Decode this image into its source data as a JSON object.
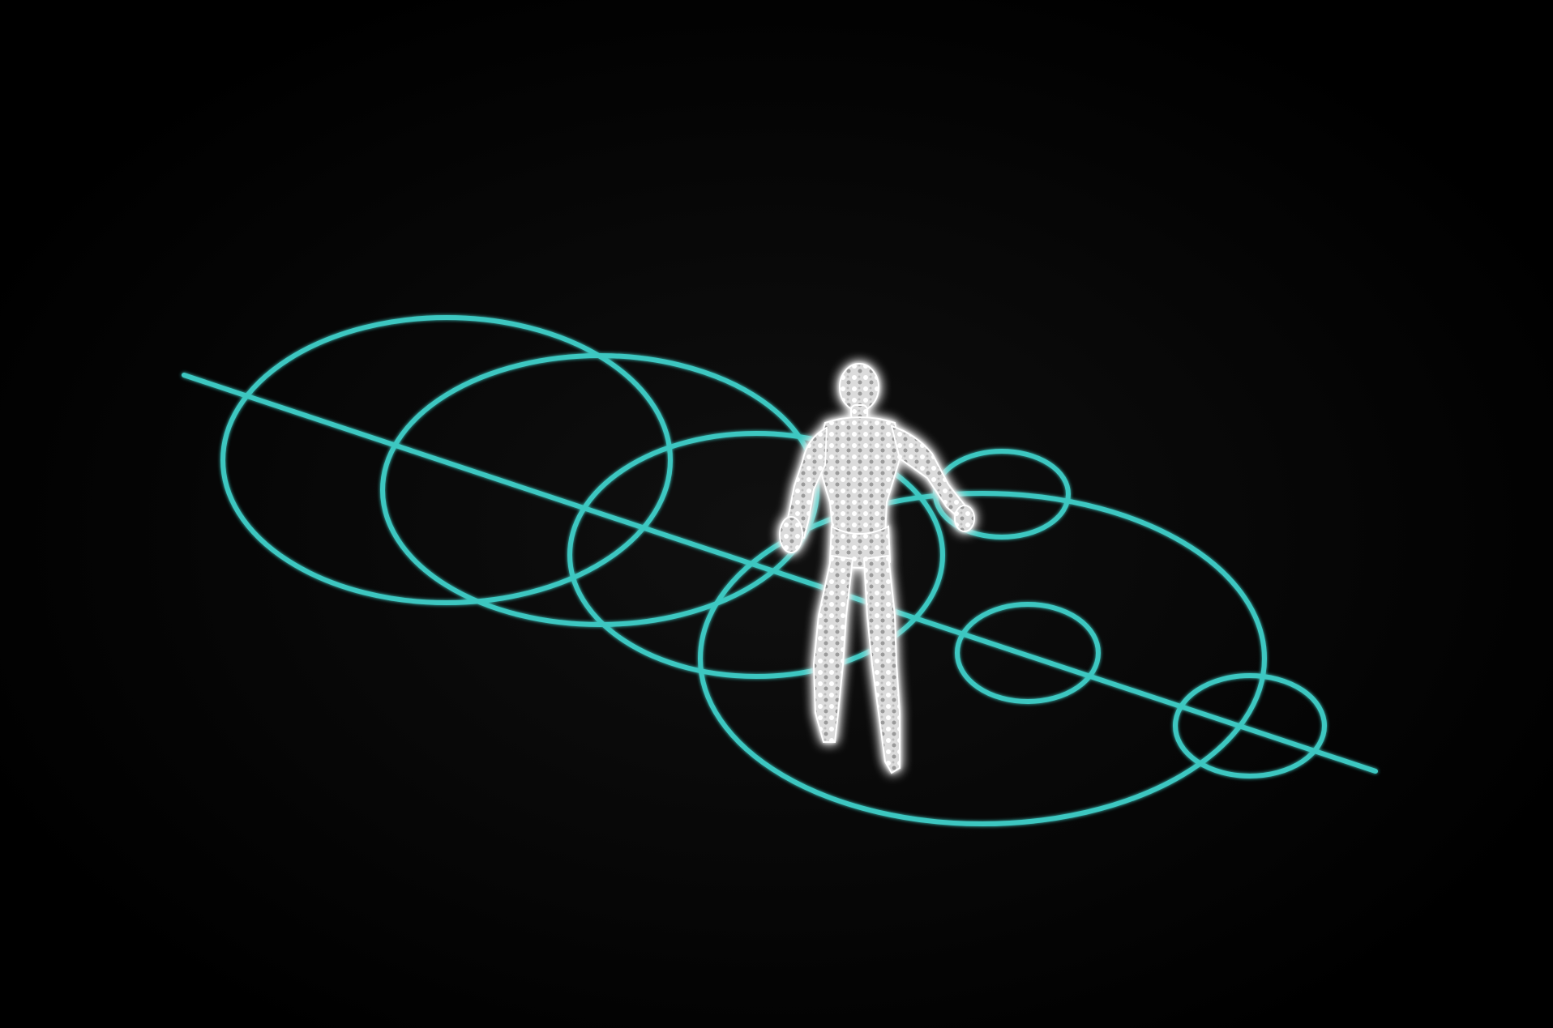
{
  "scene": {
    "background_color": "#000000",
    "guide_color": "#3cc7c1",
    "figure_color": "#f2f2f2",
    "figure_glow_color": "#ffffff",
    "character": "glowing-humanoid-figure",
    "guides": "stepping-ring-markers-along-diagonal-path"
  }
}
